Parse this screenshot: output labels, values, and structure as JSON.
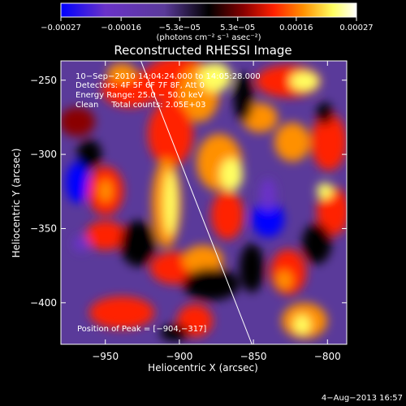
{
  "chart_data": {
    "type": "heatmap",
    "title": "Reconstructed RHESSI Image",
    "xlabel": "Heliocentric X (arcsec)",
    "ylabel": "Heliocentric Y (arcsec)",
    "xlim": [
      -980,
      -787
    ],
    "ylim": [
      -428,
      -237
    ],
    "x_ticks": [
      {
        "value": -950,
        "label": "−950"
      },
      {
        "value": -900,
        "label": "−900"
      },
      {
        "value": -850,
        "label": "−850"
      },
      {
        "value": -800,
        "label": "−800"
      }
    ],
    "y_ticks": [
      {
        "value": -250,
        "label": "−250"
      },
      {
        "value": -300,
        "label": "−300"
      },
      {
        "value": -350,
        "label": "−350"
      },
      {
        "value": -400,
        "label": "−400"
      }
    ],
    "colorbar": {
      "range": [
        -0.00027,
        0.00027
      ],
      "ticks": [
        {
          "value": -0.00027,
          "label": "−0.00027"
        },
        {
          "value": -0.00016,
          "label": "−0.00016"
        },
        {
          "value": -5.3e-05,
          "label": "−5.3e−05"
        },
        {
          "value": 5.3e-05,
          "label": "5.3e−05"
        },
        {
          "value": 0.00016,
          "label": "0.00016"
        },
        {
          "value": 0.00027,
          "label": "0.00027"
        }
      ],
      "unit_label": "(photons cm⁻² s⁻¹ asec⁻²)",
      "colors": [
        "#0000ff",
        "#6a32c8",
        "#5a3a9a",
        "#000000",
        "#8a0000",
        "#ff2000",
        "#ff9000",
        "#ffff60",
        "#ffffff"
      ]
    },
    "annotations": [
      "10−Sep−2010 14:04:24.000 to 14:05:28.000",
      "Detectors: 4F 5F 6F 7F 8F, Att 0",
      "Energy Range: 25.0 − 50.0 keV",
      "Clean     Total counts: 2.05E+03"
    ],
    "peak_label": "Position of Peak = [−904,−317]",
    "peak": {
      "x": -904,
      "y": -317
    },
    "limb_line": [
      {
        "x": -926,
        "y": -237
      },
      {
        "x": -851,
        "y": -428
      }
    ],
    "grid": false
  },
  "footer_date": "4−Aug−2013 16:57"
}
